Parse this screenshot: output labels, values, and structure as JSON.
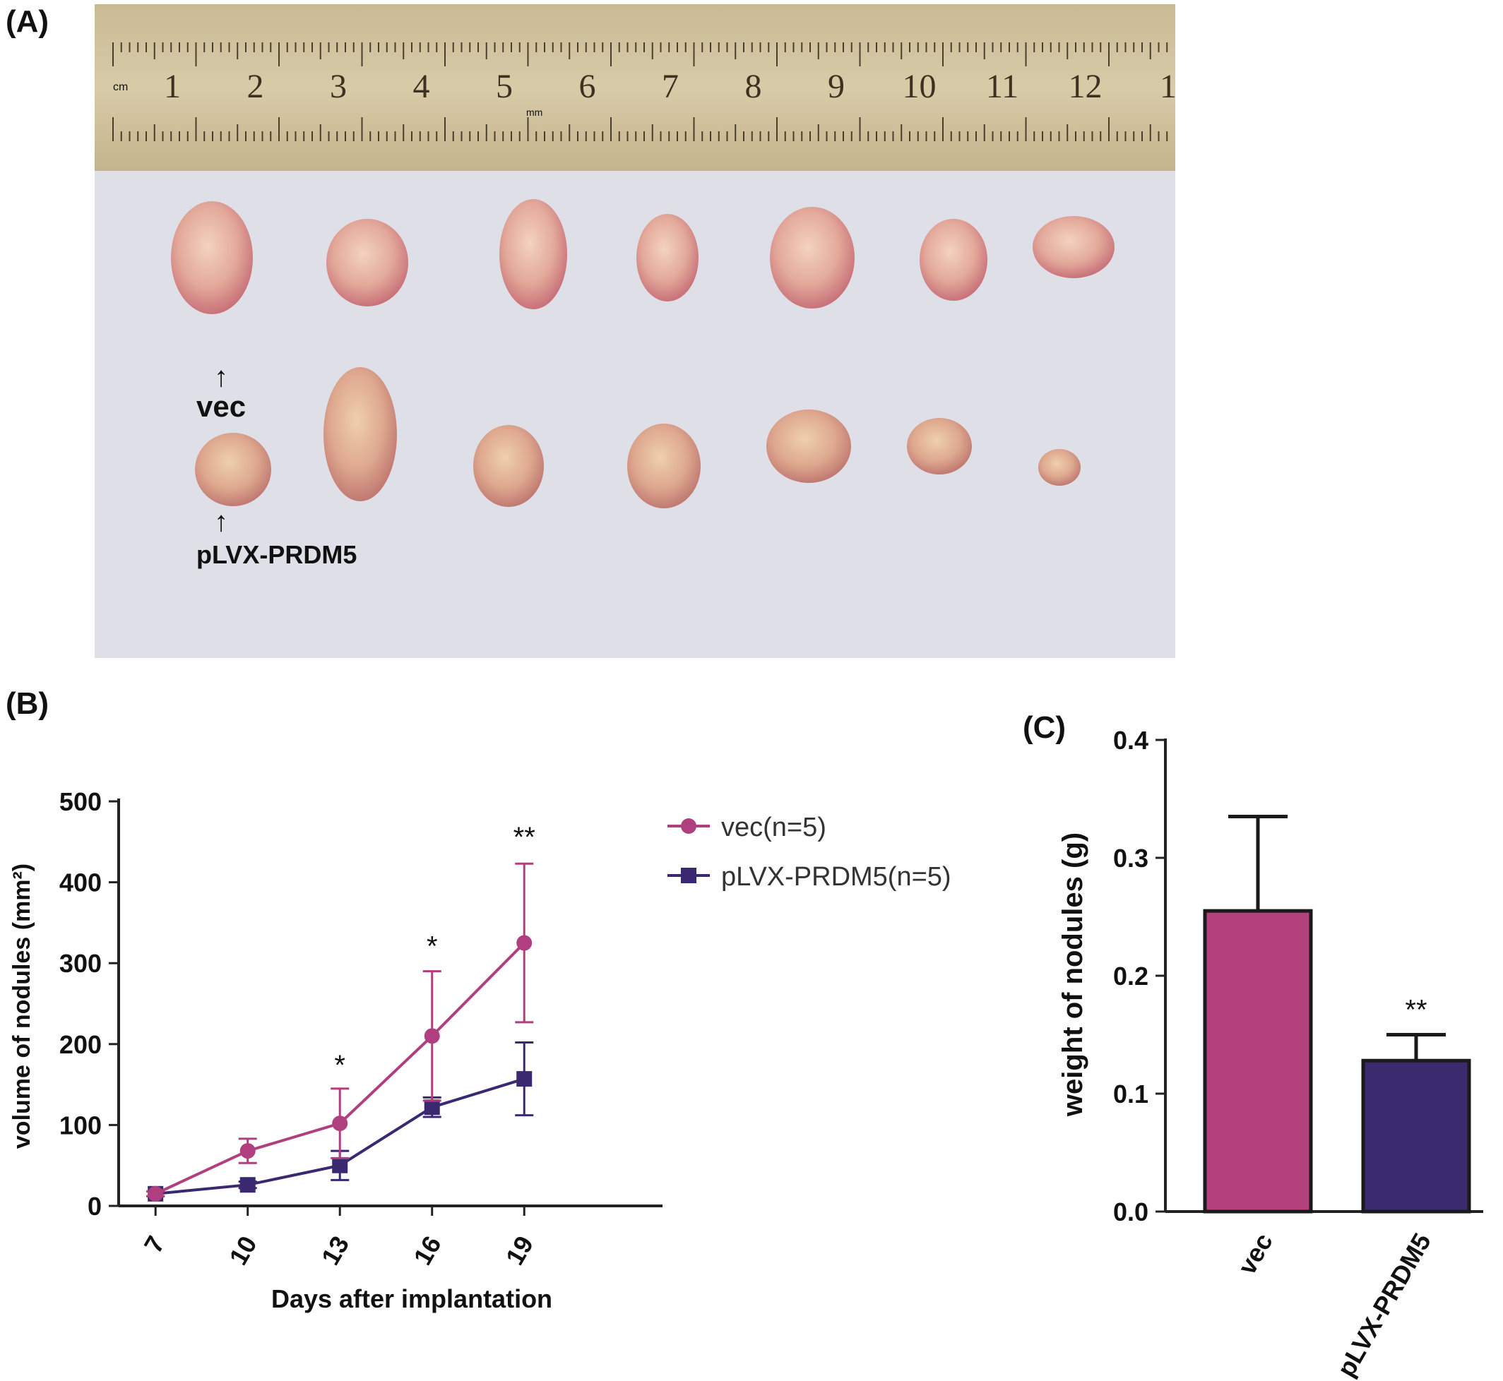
{
  "panels": {
    "a": "(A)",
    "b": "(B)",
    "c": "(C)"
  },
  "photo": {
    "ruler_numbers": [
      "1",
      "2",
      "3",
      "4",
      "5",
      "6",
      "7",
      "8",
      "9",
      "10",
      "11",
      "12",
      "1"
    ],
    "ruler_unit_cm": "cm",
    "ruler_unit_mm": "mm",
    "vec_label": "vec",
    "prdm5_label": "pLVX-PRDM5",
    "arrow": "↑",
    "top_row_count": 7,
    "bottom_row_count": 7
  },
  "colors": {
    "vec": "#b03f7f",
    "prdm5": "#3a2870",
    "vec_bar": "#b3417e",
    "prdm5_bar": "#3b2a6e"
  },
  "chart_data": [
    {
      "type": "line",
      "xlabel": "Days after implantation",
      "ylabel": "volume of nodules (mm²)",
      "x": [
        7,
        10,
        13,
        16,
        19
      ],
      "ylim": [
        0,
        500
      ],
      "yticks": [
        0,
        100,
        200,
        300,
        400,
        500
      ],
      "series": [
        {
          "name": "vec(n=5)",
          "marker": "circle",
          "values": [
            15,
            68,
            102,
            210,
            325
          ],
          "err": [
            3,
            15,
            43,
            80,
            98
          ]
        },
        {
          "name": "pLVX-PRDM5(n=5)",
          "marker": "square",
          "values": [
            15,
            26,
            50,
            122,
            157
          ],
          "err": [
            3,
            4,
            18,
            12,
            45
          ]
        }
      ],
      "annotations": [
        {
          "x": 13,
          "text": "*"
        },
        {
          "x": 16,
          "text": "*"
        },
        {
          "x": 19,
          "text": "**"
        }
      ],
      "legend_position": "top-right"
    },
    {
      "type": "bar",
      "ylabel": "weight of nodules (g)",
      "categories": [
        "vec",
        "pLVX-PRDM5"
      ],
      "values": [
        0.255,
        0.128
      ],
      "err": [
        0.08,
        0.022
      ],
      "ylim": [
        0,
        0.4
      ],
      "yticks": [
        "0.0",
        "0.1",
        "0.2",
        "0.3",
        "0.4"
      ],
      "annotations": [
        {
          "category": "pLVX-PRDM5",
          "text": "**"
        }
      ]
    }
  ]
}
